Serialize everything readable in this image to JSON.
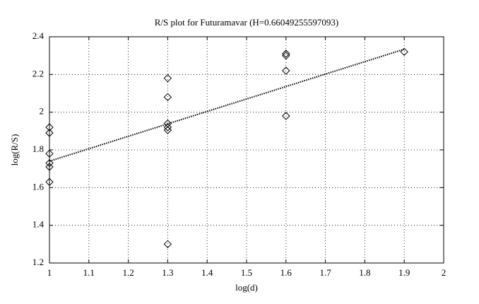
{
  "chart_data": {
    "type": "scatter",
    "title": "R/S plot for Futuramavar (H=0.66049255597093)",
    "xlabel": "log(d)",
    "ylabel": "log(R/S)",
    "x": [
      1,
      1,
      1,
      1,
      1,
      1,
      1.3,
      1.3,
      1.3,
      1.3,
      1.3,
      1.3,
      1.6,
      1.6,
      1.6,
      1.6,
      1.9
    ],
    "y": [
      1.92,
      1.89,
      1.78,
      1.73,
      1.71,
      1.63,
      2.18,
      2.08,
      1.94,
      1.92,
      1.905,
      1.3,
      2.31,
      2.3,
      2.22,
      1.98,
      2.32
    ],
    "color": "#000000",
    "fit": {
      "x": [
        1,
        1.9
      ],
      "y": [
        1.74,
        2.334
      ]
    },
    "xlim": [
      1,
      2
    ],
    "xticks": [
      1,
      1.1,
      1.2,
      1.3,
      1.4,
      1.5,
      1.6,
      1.7,
      1.8,
      1.9,
      2
    ],
    "ylim": [
      1.2,
      2.4
    ],
    "yticks": [
      1.2,
      1.4,
      1.6,
      1.8,
      2,
      2.2,
      2.4
    ],
    "grid": true
  }
}
